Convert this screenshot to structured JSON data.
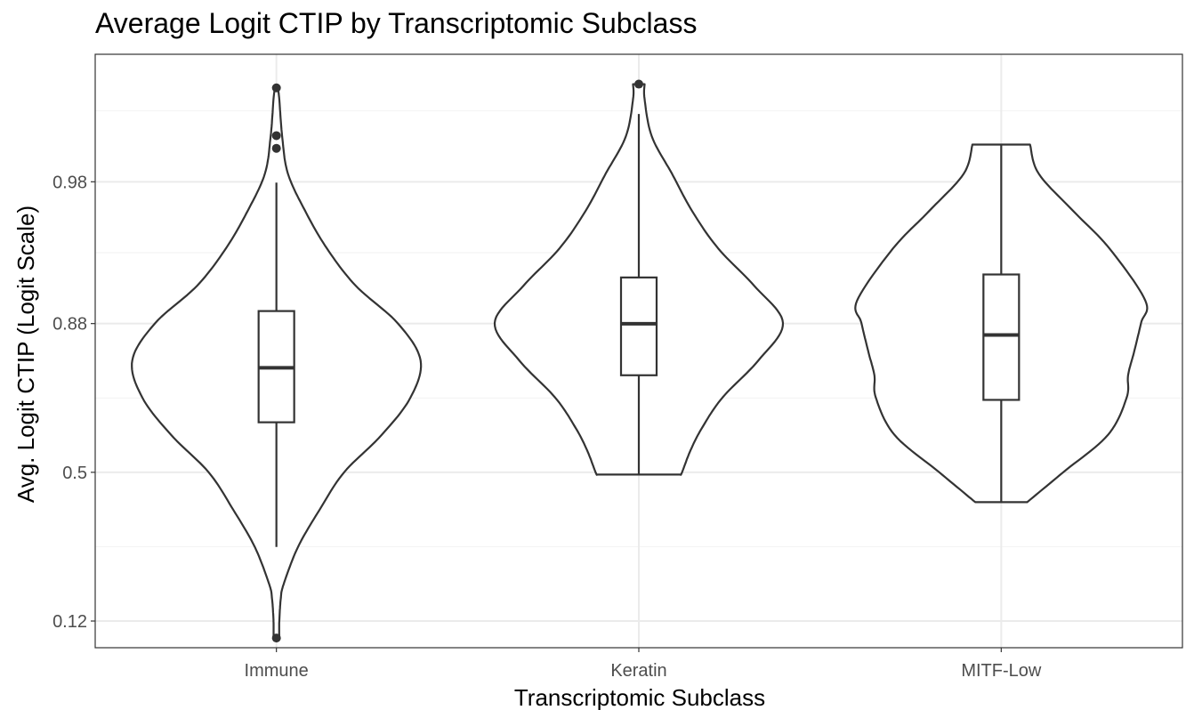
{
  "chart_data": {
    "type": "violin",
    "title": "Average Logit CTIP by Transcriptomic Subclass",
    "xlabel": "Transcriptomic Subclass",
    "ylabel": "Avg. Logit CTIP (Logit Scale)",
    "y_scale": "logit",
    "y_ticks": [
      0.12,
      0.5,
      0.88,
      0.98
    ],
    "y_tick_labels": [
      "0.12",
      "0.5",
      "0.88",
      "0.98"
    ],
    "ylim_logit": [
      -2.35,
      5.6
    ],
    "categories": [
      "Immune",
      "Keratin",
      "MITF-Low"
    ],
    "grid": true,
    "theme": "bw",
    "groups": [
      {
        "name": "Immune",
        "box": {
          "q1_logit": 0.67,
          "median_logit": 1.4,
          "q3_logit": 2.16,
          "whisker_low_logit": -1.0,
          "whisker_high_logit": 3.88
        },
        "outliers_logit": [
          -2.22,
          4.34,
          4.51,
          5.15
        ],
        "violin_profile_logit": [
          [
            -2.22,
            0.02
          ],
          [
            -2.0,
            0.02
          ],
          [
            -1.7,
            0.03
          ],
          [
            -1.5,
            0.05
          ],
          [
            -1.0,
            0.15
          ],
          [
            -0.5,
            0.3
          ],
          [
            0.0,
            0.47
          ],
          [
            0.5,
            0.73
          ],
          [
            1.0,
            0.93
          ],
          [
            1.5,
            1.0
          ],
          [
            2.0,
            0.84
          ],
          [
            2.5,
            0.55
          ],
          [
            3.0,
            0.35
          ],
          [
            3.5,
            0.2
          ],
          [
            4.0,
            0.08
          ],
          [
            4.5,
            0.04
          ],
          [
            5.0,
            0.02
          ],
          [
            5.15,
            0.01
          ]
        ]
      },
      {
        "name": "Keratin",
        "box": {
          "q1_logit": 1.3,
          "median_logit": 1.99,
          "q3_logit": 2.61,
          "whisker_low_logit": -0.03,
          "whisker_high_logit": 4.8
        },
        "outliers_logit": [
          5.2
        ],
        "violin_profile_logit": [
          [
            -0.03,
            0.29
          ],
          [
            0.0,
            0.3
          ],
          [
            0.3,
            0.36
          ],
          [
            0.6,
            0.44
          ],
          [
            1.0,
            0.58
          ],
          [
            1.5,
            0.83
          ],
          [
            2.0,
            1.0
          ],
          [
            2.5,
            0.8
          ],
          [
            3.0,
            0.55
          ],
          [
            3.5,
            0.37
          ],
          [
            4.0,
            0.23
          ],
          [
            4.5,
            0.09
          ],
          [
            5.0,
            0.04
          ],
          [
            5.2,
            0.04
          ]
        ]
      },
      {
        "name": "MITF-Low",
        "box": {
          "q1_logit": 0.97,
          "median_logit": 1.84,
          "q3_logit": 2.65,
          "whisker_low_logit": -0.4,
          "whisker_high_logit": 4.39
        },
        "outliers_logit": [],
        "violin_profile_logit": [
          [
            -0.4,
            0.18
          ],
          [
            0.0,
            0.43
          ],
          [
            0.5,
            0.74
          ],
          [
            1.0,
            0.87
          ],
          [
            1.3,
            0.88
          ],
          [
            1.6,
            0.92
          ],
          [
            2.0,
            0.97
          ],
          [
            2.3,
            1.0
          ],
          [
            3.0,
            0.75
          ],
          [
            3.5,
            0.5
          ],
          [
            4.0,
            0.26
          ],
          [
            4.39,
            0.2
          ]
        ]
      }
    ]
  }
}
